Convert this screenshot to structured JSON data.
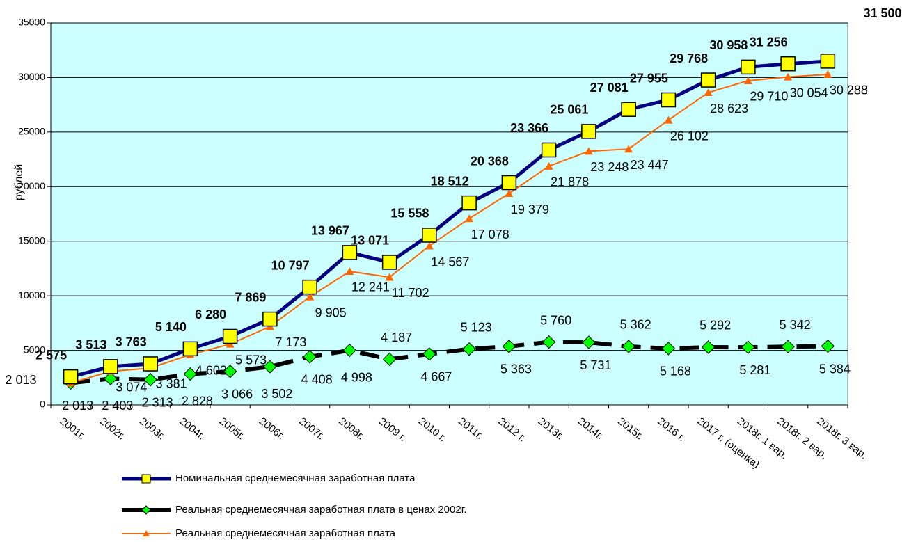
{
  "chart_data": {
    "type": "line",
    "ylabel": "рублей",
    "categories": [
      "2001г.",
      "2002г.",
      "2003г.",
      "2004г.",
      "2005г.",
      "2006г.",
      "2007г.",
      "2008г.",
      "2009 г.",
      "2010 г.",
      "2011г.",
      "2012 г.",
      "2013г.",
      "2014г.",
      "2015г.",
      "2016 г.",
      "2017 г. (оценка)",
      "2018г. 1 вар.",
      "2018г. 2 вар.",
      "2018г. 3 вар."
    ],
    "series": [
      {
        "name": "Номинальная среднемесячная заработная плата",
        "color": "#000080",
        "marker_color": "#ffff00",
        "values": [
          2575,
          3513,
          3763,
          5140,
          6280,
          7869,
          10797,
          13967,
          13071,
          15558,
          18512,
          20368,
          23366,
          25061,
          27081,
          27955,
          29768,
          30958,
          31256,
          31500
        ],
        "value_labels": [
          "2 575",
          "3 513",
          "3 763",
          "5 140",
          "6 280",
          "7 869",
          "10 797",
          "13 967",
          "13 071",
          "15 558",
          "18 512",
          "20 368",
          "23 366",
          "25 061",
          "27 081",
          "27 955",
          "29 768",
          "30 958",
          "31 256",
          "31 500"
        ]
      },
      {
        "name": "Реальная среднемесячная заработная плата в ценах 2002г.",
        "color": "#000000",
        "marker_color": "#00ff00",
        "values": [
          2013,
          2403,
          2313,
          2828,
          3066,
          3502,
          4408,
          4998,
          4187,
          4667,
          5123,
          5363,
          5760,
          5731,
          5362,
          5168,
          5292,
          5281,
          5342,
          5384
        ],
        "value_labels": [
          "2 013",
          "2 403",
          "2 313",
          "2 828",
          "3 066",
          "3 502",
          "4 408",
          "4 998",
          "4 187",
          "4 667",
          "5 123",
          "5 363",
          "5 760",
          "5 731",
          "5 362",
          "5 168",
          "5 292",
          "5 281",
          "5 342",
          "5 384"
        ]
      },
      {
        "name": "Реальная среднемесячная заработная плата",
        "color": "#ff6600",
        "marker_color": "#ff6600",
        "values": [
          2013,
          3074,
          3381,
          4602,
          5573,
          7173,
          9905,
          12241,
          11702,
          14567,
          17078,
          19379,
          21878,
          23248,
          23447,
          26102,
          28623,
          29710,
          30054,
          30288
        ],
        "value_labels": [
          "2 013",
          "3 074",
          "3 381",
          "4 602",
          "5 573",
          "7 173",
          "9 905",
          "12 241",
          "11 702",
          "14 567",
          "17 078",
          "19 379",
          "21 878",
          "23 248",
          "23 447",
          "26 102",
          "28 623",
          "29 710",
          "30 054",
          "30 288"
        ]
      }
    ],
    "ylim": [
      0,
      35000
    ],
    "yticks": [
      0,
      5000,
      10000,
      15000,
      20000,
      25000,
      30000,
      35000
    ],
    "grid": true
  }
}
